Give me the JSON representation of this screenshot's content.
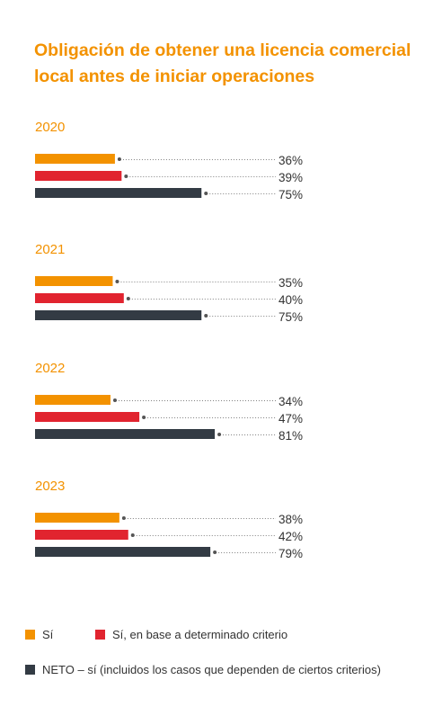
{
  "title": "Obligación de obtener una licencia comercial\nlocal antes de iniciar operaciones",
  "colors": {
    "title": "#f39200",
    "si": "#f39200",
    "criterio": "#e1242f",
    "neto": "#333b44",
    "year": "#f39200",
    "text": "#333333",
    "dots": "#555555"
  },
  "legend": {
    "si": "Sí",
    "criterio": "Sí, en base a determinado criterio",
    "neto": "NETO – sí (incluidos los casos que dependen de ciertos criterios)"
  },
  "chart_data": {
    "type": "bar",
    "orientation": "horizontal",
    "title": "Obligación de obtener una licencia comercial local antes de iniciar operaciones",
    "unit": "%",
    "legend_position": "bottom",
    "groups": [
      {
        "year": "2020",
        "values": [
          36,
          39,
          75
        ],
        "labels": [
          "36%",
          "39%",
          "75%"
        ]
      },
      {
        "year": "2021",
        "values": [
          35,
          40,
          75
        ],
        "labels": [
          "35%",
          "40%",
          "75%"
        ]
      },
      {
        "year": "2022",
        "values": [
          34,
          47,
          81
        ],
        "labels": [
          "34%",
          "47%",
          "81%"
        ]
      },
      {
        "year": "2023",
        "values": [
          38,
          42,
          79
        ],
        "labels": [
          "38%",
          "42%",
          "79%"
        ]
      }
    ],
    "series": [
      {
        "name": "Sí",
        "color": "#f39200"
      },
      {
        "name": "Sí, en base a determinado criterio",
        "color": "#e1242f"
      },
      {
        "name": "NETO – sí (incluidos los casos que dependen de ciertos criterios)",
        "color": "#333b44"
      }
    ]
  }
}
